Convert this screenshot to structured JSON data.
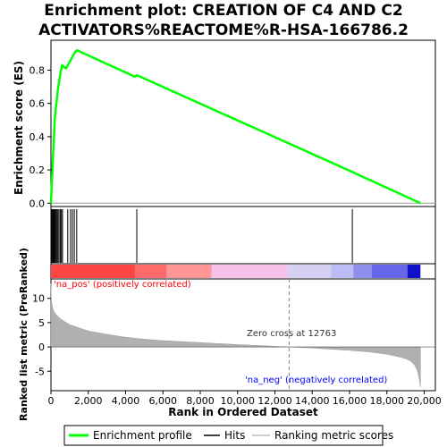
{
  "chart_data": {
    "type": "line",
    "title_lines": [
      "Enrichment plot: CREATION OF C4 AND C2",
      "ACTIVATORS%REACTOME%R-HSA-166786.2"
    ],
    "top_panel": {
      "ylabel": "Enrichment score (ES)",
      "ylim": [
        -0.02,
        0.98
      ],
      "yticks": [
        0.0,
        0.2,
        0.4,
        0.6,
        0.8
      ],
      "ytick_labels": [
        "0.0",
        "0.2",
        "0.4",
        "0.6",
        "0.8"
      ],
      "series": [
        {
          "name": "Enrichment profile",
          "color": "#00ff00",
          "x": [
            0,
            40,
            80,
            120,
            160,
            200,
            260,
            320,
            380,
            440,
            520,
            600,
            800,
            1000,
            1100,
            1200,
            1300,
            1400,
            4500,
            4600,
            4700,
            16100,
            16200,
            19800
          ],
          "y": [
            0.0,
            0.1,
            0.2,
            0.3,
            0.38,
            0.5,
            0.57,
            0.63,
            0.69,
            0.73,
            0.79,
            0.83,
            0.81,
            0.85,
            0.87,
            0.89,
            0.91,
            0.92,
            0.76,
            0.77,
            0.765,
            0.19,
            0.185,
            0.0
          ]
        }
      ]
    },
    "hits": [
      20,
      60,
      100,
      140,
      180,
      220,
      270,
      320,
      370,
      430,
      500,
      560,
      620,
      900,
      1050,
      1150,
      1250,
      1380,
      4600,
      16150
    ],
    "hits_color": "#000000",
    "heatmap_bands": [
      {
        "start": 0,
        "end": 4500,
        "color": "#ff4444"
      },
      {
        "start": 4500,
        "end": 6200,
        "color": "#ff6a6a"
      },
      {
        "start": 6200,
        "end": 8600,
        "color": "#ff9595"
      },
      {
        "start": 8600,
        "end": 12700,
        "color": "#f7c2ea"
      },
      {
        "start": 12700,
        "end": 15000,
        "color": "#d6d0f5"
      },
      {
        "start": 15000,
        "end": 16200,
        "color": "#bdbdf5"
      },
      {
        "start": 16200,
        "end": 17200,
        "color": "#8f8ff0"
      },
      {
        "start": 17200,
        "end": 19100,
        "color": "#6666e8"
      },
      {
        "start": 19100,
        "end": 19800,
        "color": "#1010c8"
      }
    ],
    "bottom_panel": {
      "ylabel": "Ranked list metric (PreRanked)",
      "ylim": [
        -9,
        14
      ],
      "yticks": [
        -5,
        0,
        5,
        10
      ],
      "ytick_labels": [
        "-5",
        "0",
        "5",
        "10"
      ],
      "metric": {
        "x": [
          0,
          20,
          60,
          120,
          250,
          500,
          1000,
          2000,
          3000,
          4000,
          5000,
          6000,
          8000,
          10000,
          12763,
          14000,
          16000,
          17000,
          18000,
          18500,
          19000,
          19300,
          19500,
          19650,
          19750,
          19800
        ],
        "y": [
          13,
          10,
          8.5,
          7.6,
          6.8,
          5.8,
          4.6,
          3.3,
          2.6,
          2.0,
          1.6,
          1.3,
          0.9,
          0.5,
          0.0,
          -0.2,
          -0.7,
          -1.0,
          -1.5,
          -1.9,
          -2.4,
          -3.0,
          -3.8,
          -5.0,
          -7.0,
          -8.3
        ]
      },
      "zero_cross": 12763,
      "zero_cross_label": "Zero cross at 12763",
      "pos_label": "'na_pos' (positively correlated)",
      "neg_label": "'na_neg' (negatively correlated)",
      "pos_color": "#ff0000",
      "neg_color": "#0000ff"
    },
    "x_axis": {
      "label": "Rank in Ordered Dataset",
      "xlim": [
        0,
        20600
      ],
      "ticks": [
        0,
        2000,
        4000,
        6000,
        8000,
        10000,
        12000,
        14000,
        16000,
        18000,
        20000
      ],
      "tick_labels": [
        "0",
        "2,000",
        "4,000",
        "6,000",
        "8,000",
        "10,000",
        "12,000",
        "14,000",
        "16,000",
        "18,000",
        "20,000"
      ]
    },
    "legend": {
      "position": "bottom",
      "items": [
        {
          "label": "Enrichment profile",
          "color": "#00ff00"
        },
        {
          "label": "Hits",
          "color": "#000000"
        },
        {
          "label": "Ranking metric scores",
          "color": "#c0c0c0"
        }
      ]
    }
  }
}
